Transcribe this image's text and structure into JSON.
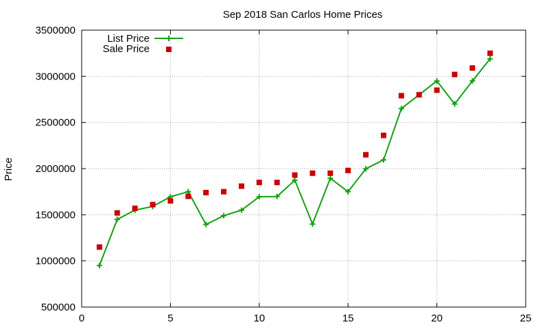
{
  "chart_data": {
    "type": "line",
    "title": "Sep 2018 San Carlos Home Prices",
    "xlabel": "",
    "ylabel": "Price",
    "xlim": [
      0,
      25
    ],
    "ylim": [
      500000,
      3500000
    ],
    "xticks": [
      "0",
      "5",
      "10",
      "15",
      "20",
      "25"
    ],
    "yticks": [
      "500000",
      "1000000",
      "1500000",
      "2000000",
      "2500000",
      "3000000",
      "3500000"
    ],
    "grid": true,
    "legend_position": "top-left",
    "series": [
      {
        "name": "List Price",
        "style": "line+cross",
        "color": "#11a011",
        "x": [
          1,
          2,
          3,
          4,
          5,
          6,
          7,
          8,
          9,
          10,
          11,
          12,
          13,
          14,
          15,
          16,
          17,
          18,
          19,
          20,
          21,
          22,
          23
        ],
        "y": [
          950000,
          1450000,
          1550000,
          1590000,
          1695000,
          1750000,
          1395000,
          1490000,
          1550000,
          1695000,
          1698000,
          1875000,
          1399000,
          1895000,
          1750000,
          1998000,
          2095000,
          2650000,
          2800000,
          2950000,
          2700000,
          2950000,
          3190000
        ]
      },
      {
        "name": "Sale Price",
        "style": "square",
        "color": "#cc0000",
        "x": [
          1,
          2,
          3,
          4,
          5,
          6,
          7,
          8,
          9,
          10,
          11,
          12,
          13,
          14,
          15,
          16,
          17,
          18,
          19,
          20,
          21,
          22,
          23
        ],
        "y": [
          1150000,
          1520000,
          1570000,
          1610000,
          1650000,
          1700000,
          1740000,
          1750000,
          1810000,
          1850000,
          1850000,
          1930000,
          1950000,
          1950000,
          1980000,
          2150000,
          2360000,
          2790000,
          2800000,
          2850000,
          3020000,
          3090000,
          3250000
        ]
      }
    ]
  }
}
